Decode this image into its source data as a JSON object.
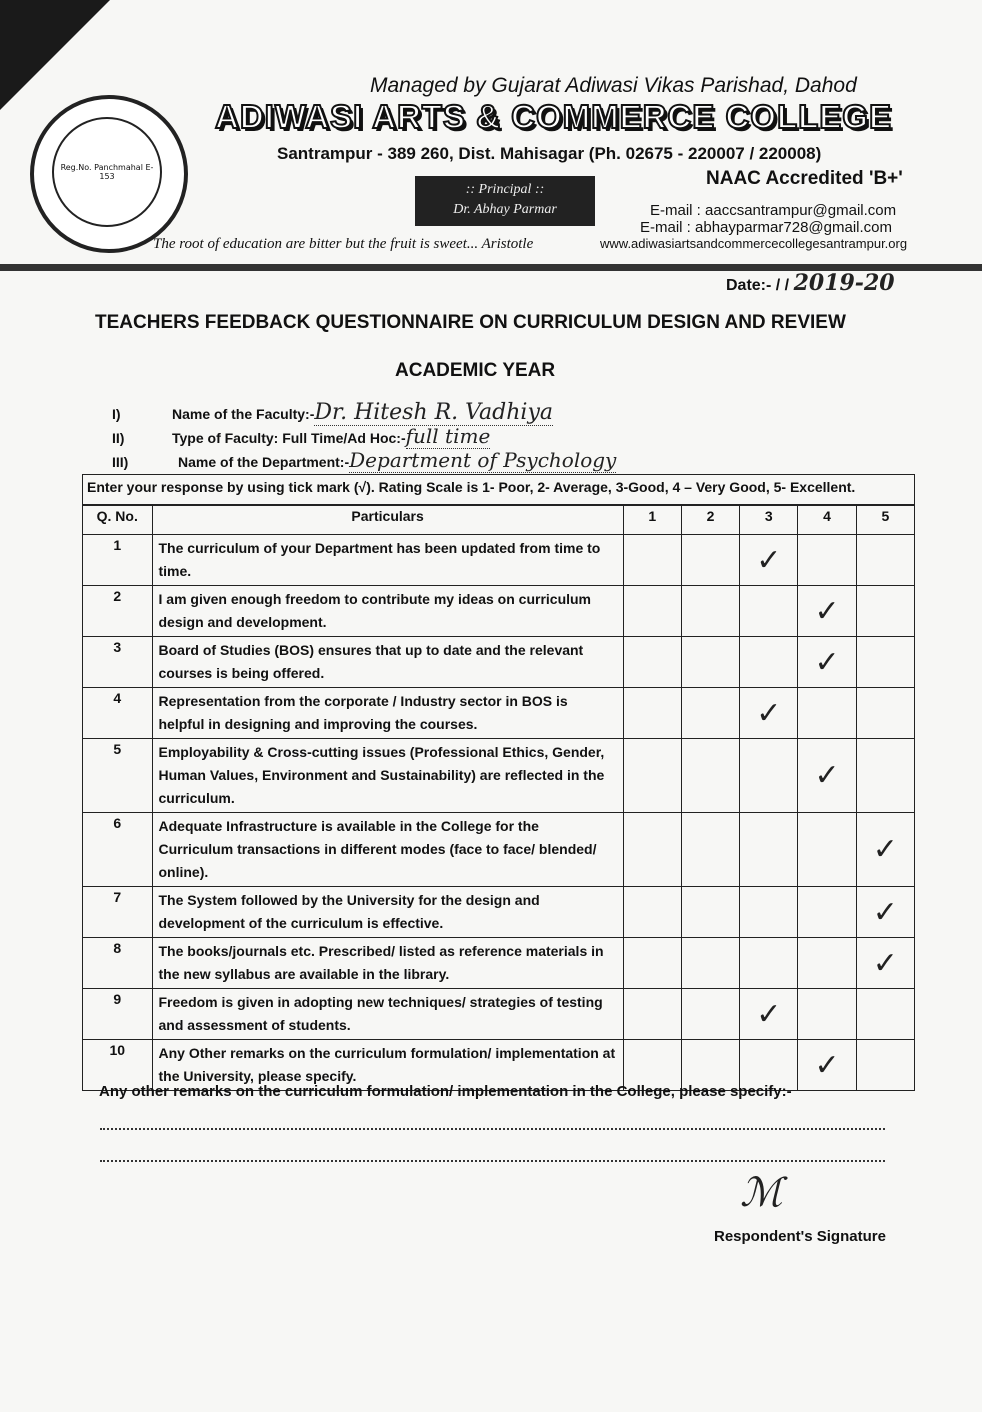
{
  "header": {
    "managed_by": "Managed by Gujarat Adiwasi Vikas Parishad, Dahod",
    "college_name": "ADIWASI ARTS & COMMERCE COLLEGE",
    "address": "Santrampur - 389 260,  Dist. Mahisagar  (Ph. 02675 - 220007  /  220008)",
    "naac": "NAAC Accredited 'B+'",
    "principal_label": ":: Principal ::",
    "principal_name": "Dr. Abhay Parmar",
    "email1": "E-mail : aaccsantrampur@gmail.com",
    "email2": "E-mail : abhayparmar728@gmail.com",
    "website": "www.adiwasiartsandcommercecollegesantrampur.org",
    "motto": "The root of education are bitter but the fruit is sweet... Aristotle",
    "logo_text": {
      "top": "ADIWASI ARTS & COMMERCE COLLEGE",
      "reg": "Reg.No. Panchmahal E-153",
      "bottom": "SANTRAMPUR - 389260"
    }
  },
  "date": {
    "label": "Date:-  /   /",
    "value": "2019-20"
  },
  "title": "TEACHERS FEEDBACK QUESTIONNAIRE ON CURRICULUM DESIGN AND REVIEW",
  "academic_year": "ACADEMIC YEAR",
  "fields": [
    {
      "num": "I)",
      "label": "Name of the Faculty:-",
      "value": "Dr. Hitesh R. Vadhiya"
    },
    {
      "num": "II)",
      "label": "Type of Faculty: Full Time/Ad Hoc:-",
      "value": "full time"
    },
    {
      "num": "III)",
      "label": "Name of the Department:-",
      "value": "Department of Psychology"
    }
  ],
  "instructions": "Enter your response by using tick mark (√). Rating Scale is  1- Poor, 2- Average, 3-Good, 4 – Very Good, 5- Excellent.",
  "table": {
    "headers": [
      "Q. No.",
      "Particulars",
      "1",
      "2",
      "3",
      "4",
      "5"
    ],
    "tick": "✓",
    "rows": [
      {
        "q": "1",
        "text": "The curriculum of your Department has been updated from time to time.",
        "rating": 3
      },
      {
        "q": "2",
        "text": "I am given enough freedom to contribute my ideas on curriculum design and development.",
        "rating": 4
      },
      {
        "q": "3",
        "text": "Board of Studies (BOS) ensures that up to date and the relevant courses is being offered.",
        "rating": 4
      },
      {
        "q": "4",
        "text": "Representation from the corporate / Industry sector in BOS is helpful in designing and improving the courses.",
        "rating": 3
      },
      {
        "q": "5",
        "text": "Employability & Cross-cutting issues (Professional Ethics, Gender, Human Values, Environment and Sustainability) are reflected in the curriculum.",
        "rating": 4
      },
      {
        "q": "6",
        "text": "Adequate Infrastructure is available in the College for the Curriculum transactions in different modes (face to face/ blended/ online).",
        "rating": 5
      },
      {
        "q": "7",
        "text": "The System followed by the University for the design and development of the curriculum is effective.",
        "rating": 5
      },
      {
        "q": "8",
        "text": "The books/journals etc. Prescribed/ listed as reference materials in the new syllabus are available in the library.",
        "rating": 5
      },
      {
        "q": "9",
        "text": "Freedom is given in adopting new techniques/ strategies of testing and assessment of students.",
        "rating": 3
      },
      {
        "q": "10",
        "text": "Any Other remarks on the curriculum formulation/ implementation at the University, please specify.",
        "rating": 4
      }
    ]
  },
  "remarks_label": "Any other remarks on the curriculum formulation/ implementation in the College, please specify:-",
  "signature_label": "Respondent's Signature"
}
